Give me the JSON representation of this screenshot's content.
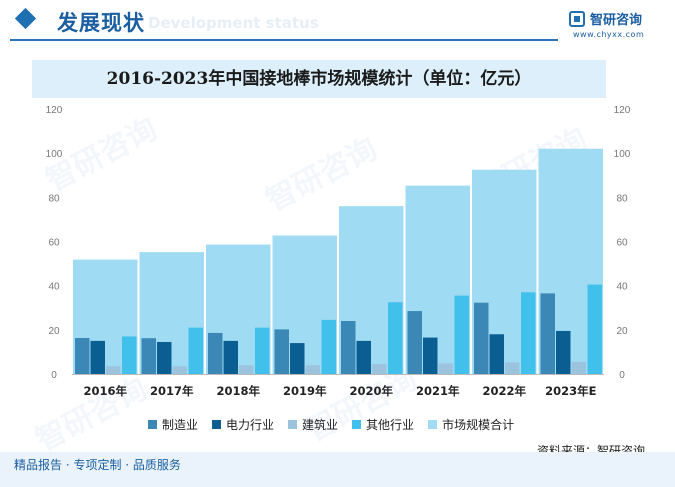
{
  "header": {
    "title": "发展现状",
    "subtitle": "Development status"
  },
  "logo": {
    "name": "智研咨询",
    "url": "www.chyxx.com"
  },
  "watermark": "智研咨询",
  "chart_data": {
    "type": "bar",
    "title": "2016-2023年中国接地棒市场规模统计（单位：亿元）",
    "categories": [
      "2016年",
      "2017年",
      "2018年",
      "2019年",
      "2020年",
      "2021年",
      "2022年",
      "2023年E"
    ],
    "ylim": [
      0,
      120
    ],
    "yticks": [
      "0",
      "20",
      "40",
      "60",
      "80",
      "100",
      "120"
    ],
    "series": [
      {
        "name": "制造业",
        "color": "#3b87b6",
        "values": [
          16.3,
          16.2,
          18.6,
          20.2,
          24,
          28.5,
          32.3,
          36.5
        ]
      },
      {
        "name": "电力行业",
        "color": "#0b5e91",
        "values": [
          15,
          14.5,
          15,
          14,
          15,
          16.5,
          18,
          19.5
        ]
      },
      {
        "name": "建筑业",
        "color": "#9bc3dd",
        "values": [
          3.5,
          3.5,
          4,
          4,
          4.5,
          4.8,
          5.2,
          5.5
        ]
      },
      {
        "name": "其他行业",
        "color": "#42c0ec",
        "values": [
          17,
          21,
          21,
          24.5,
          32.5,
          35.5,
          37,
          40.5
        ]
      },
      {
        "name": "市场规模合计",
        "color": "#9fdcf3",
        "values": [
          51.8,
          55.2,
          58.6,
          62.7,
          76,
          85.3,
          92.5,
          102
        ]
      }
    ],
    "legend_position": "bottom",
    "grid": false
  },
  "source": "资料来源：智研咨询",
  "footer": "精品报告 · 专项定制 · 品质服务"
}
